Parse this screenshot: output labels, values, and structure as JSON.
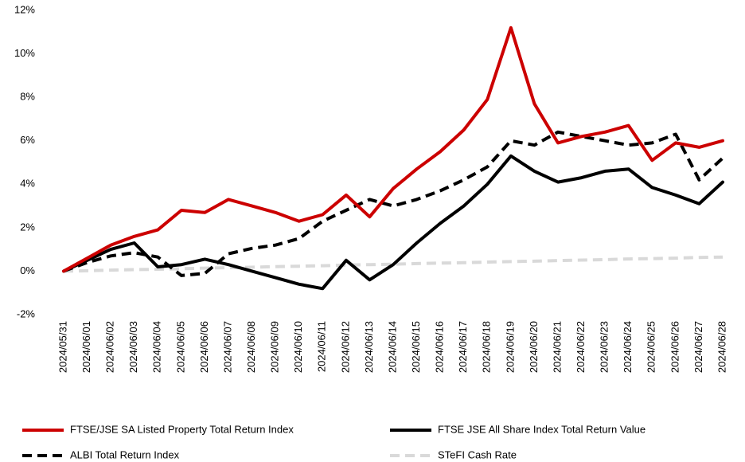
{
  "chart_data": {
    "type": "line",
    "categories": [
      "2024/05/31",
      "2024/06/01",
      "2024/06/02",
      "2024/06/03",
      "2024/06/04",
      "2024/06/05",
      "2024/06/06",
      "2024/06/07",
      "2024/06/08",
      "2024/06/09",
      "2024/06/10",
      "2024/06/11",
      "2024/06/12",
      "2024/06/13",
      "2024/06/14",
      "2024/06/15",
      "2024/06/16",
      "2024/06/17",
      "2024/06/18",
      "2024/06/19",
      "2024/06/20",
      "2024/06/21",
      "2024/06/22",
      "2024/06/23",
      "2024/06/24",
      "2024/06/25",
      "2024/06/26",
      "2024/06/27",
      "2024/06/28"
    ],
    "series": [
      {
        "name": "FTSE/JSE SA Listed Property Total Return Index",
        "color": "#cc0000",
        "dashed": false,
        "values": [
          0,
          0.6,
          1.2,
          1.6,
          1.9,
          2.8,
          2.7,
          3.3,
          3.0,
          2.7,
          2.3,
          2.6,
          3.5,
          2.5,
          3.8,
          4.7,
          5.5,
          6.5,
          7.9,
          11.2,
          7.7,
          5.9,
          6.2,
          6.4,
          6.7,
          5.1,
          5.9,
          5.7,
          6.0
        ]
      },
      {
        "name": "FTSE JSE All Share Index Total Return Value",
        "color": "#000000",
        "dashed": false,
        "values": [
          0,
          0.5,
          1.0,
          1.3,
          0.2,
          0.3,
          0.55,
          0.3,
          0.0,
          -0.3,
          -0.6,
          -0.8,
          0.5,
          -0.4,
          0.3,
          1.3,
          2.2,
          3.0,
          4.0,
          5.3,
          4.6,
          4.1,
          4.3,
          4.6,
          4.7,
          3.85,
          3.5,
          3.1,
          4.1
        ]
      },
      {
        "name": "ALBI Total Return Index",
        "color": "#000000",
        "dashed": true,
        "values": [
          0,
          0.4,
          0.7,
          0.85,
          0.65,
          -0.2,
          -0.1,
          0.8,
          1.05,
          1.2,
          1.5,
          2.3,
          2.8,
          3.3,
          3.0,
          3.3,
          3.7,
          4.2,
          4.8,
          6.0,
          5.8,
          6.4,
          6.2,
          6.0,
          5.8,
          5.9,
          6.3,
          4.2,
          5.2
        ]
      },
      {
        "name": "STeFI Cash Rate",
        "color": "#d9d9d9",
        "dashed": true,
        "values": [
          0,
          0.02,
          0.05,
          0.07,
          0.09,
          0.11,
          0.14,
          0.16,
          0.18,
          0.21,
          0.23,
          0.25,
          0.28,
          0.3,
          0.32,
          0.35,
          0.37,
          0.39,
          0.42,
          0.44,
          0.46,
          0.49,
          0.51,
          0.53,
          0.56,
          0.58,
          0.6,
          0.63,
          0.65
        ]
      }
    ],
    "ylim": [
      -2,
      12
    ],
    "yticks": [
      {
        "value": -2,
        "label": "-2%"
      },
      {
        "value": 0,
        "label": "0%"
      },
      {
        "value": 2,
        "label": "2%"
      },
      {
        "value": 4,
        "label": "4%"
      },
      {
        "value": 6,
        "label": "6%"
      },
      {
        "value": 8,
        "label": "8%"
      },
      {
        "value": 10,
        "label": "10%"
      },
      {
        "value": 12,
        "label": "12%"
      }
    ],
    "grid": false,
    "legend": "bottom"
  }
}
